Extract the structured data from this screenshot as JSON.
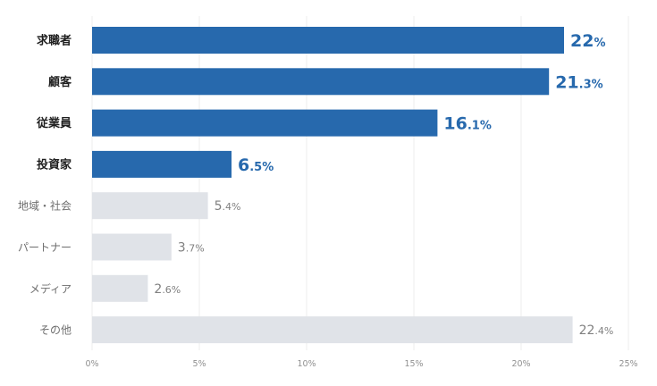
{
  "colors": {
    "highlight_bar": "#2769ad",
    "muted_bar": "#e0e3e8",
    "highlight_text": "#2769ad",
    "muted_text": "#808080",
    "highlight_label": "#1f1f1f",
    "muted_label": "#6e6e6e",
    "grid": "#ececec",
    "tick": "#909090"
  },
  "chart_data": {
    "type": "bar",
    "orientation": "horizontal",
    "categories": [
      "求職者",
      "顧客",
      "従業員",
      "投資家",
      "地域・社会",
      "パートナー",
      "メディア",
      "その他"
    ],
    "values": [
      22,
      21.3,
      16.1,
      6.5,
      5.4,
      3.7,
      2.6,
      22.4
    ],
    "value_labels": [
      {
        "int": "22",
        "dec": "%"
      },
      {
        "int": "21",
        "dec": ".3%"
      },
      {
        "int": "16",
        "dec": ".1%"
      },
      {
        "int": "6",
        "dec": ".5%"
      },
      {
        "int": "5",
        "dec": ".4%"
      },
      {
        "int": "3",
        "dec": ".7%"
      },
      {
        "int": "2",
        "dec": ".6%"
      },
      {
        "int": "22",
        "dec": ".4%"
      }
    ],
    "highlighted": [
      true,
      true,
      true,
      true,
      false,
      false,
      false,
      false
    ],
    "x_ticks": [
      0,
      5,
      10,
      15,
      20,
      25
    ],
    "x_tick_labels": [
      "0%",
      "5%",
      "10%",
      "15%",
      "20%",
      "25%"
    ],
    "xlim": [
      0,
      25
    ],
    "grid": true
  }
}
